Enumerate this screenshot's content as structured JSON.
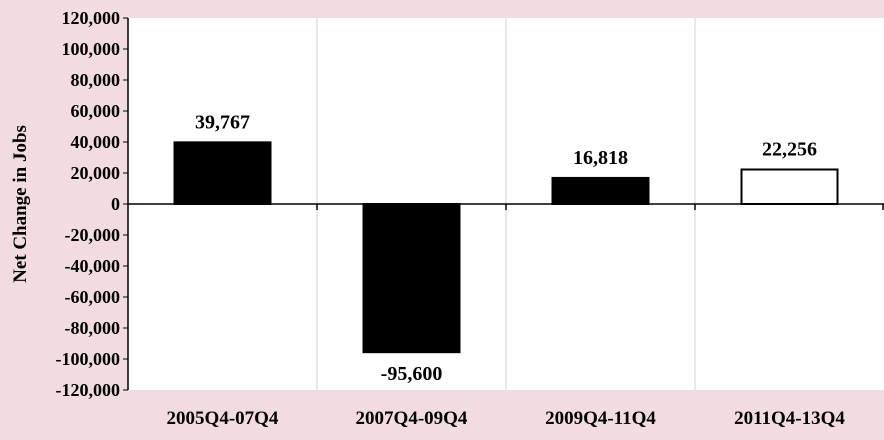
{
  "chart_data": {
    "type": "bar",
    "categories": [
      "2005Q4-07Q4",
      "2007Q4-09Q4",
      "2009Q4-11Q4",
      "2011Q4-13Q4"
    ],
    "values": [
      39767,
      -95600,
      16818,
      22256
    ],
    "value_labels": [
      "39,767",
      "-95,600",
      "16,818",
      "22,256"
    ],
    "bar_fill": [
      "#000000",
      "#000000",
      "#000000",
      "#ffffff"
    ],
    "ylabel": "Net Change in Jobs",
    "xlabel": "",
    "title": "",
    "ylim": [
      -120000,
      120000
    ],
    "ytick_step": 20000,
    "y_tick_labels": [
      "120,000",
      "100,000",
      "80,000",
      "60,000",
      "40,000",
      "20,000",
      "0",
      "-20,000",
      "-40,000",
      "-60,000",
      "-80,000",
      "-100,000",
      "-120,000"
    ],
    "grid": "vertical-category-separators",
    "legend": "none"
  },
  "colors": {
    "page_background": "#f2dce0",
    "plot_background": "#ffffff",
    "grid": "#d0d0d0",
    "axis": "#000000"
  }
}
